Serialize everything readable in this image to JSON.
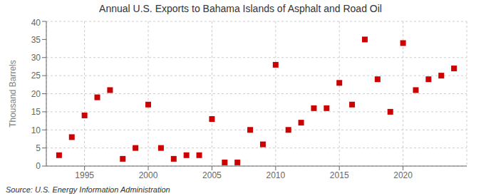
{
  "chart_data": {
    "type": "scatter",
    "title": "Annual U.S. Exports to Bahama Islands of Asphalt and Road Oil",
    "ylabel": "Thousand Barrels",
    "annotations": [
      "Source: U.S. Energy Information Administration"
    ],
    "x": [
      1993,
      1994,
      1995,
      1996,
      1997,
      1998,
      1999,
      2000,
      2001,
      2002,
      2003,
      2004,
      2005,
      2006,
      2007,
      2008,
      2009,
      2010,
      2011,
      2012,
      2013,
      2014,
      2015,
      2016,
      2017,
      2018,
      2019,
      2020,
      2021,
      2022,
      2023,
      2024
    ],
    "values": [
      3,
      8,
      14,
      19,
      21,
      2,
      5,
      17,
      5,
      2,
      3,
      3,
      13,
      1,
      1,
      10,
      6,
      28,
      10,
      12,
      16,
      16,
      23,
      17,
      35,
      24,
      15,
      34,
      21,
      24,
      25,
      27
    ],
    "color": "#cc0000",
    "marker": "square",
    "xlim": [
      1992,
      2025
    ],
    "ylim": [
      0,
      40
    ],
    "yticks": [
      0,
      5,
      10,
      15,
      20,
      25,
      30,
      35,
      40
    ],
    "xticks": [
      1995,
      2000,
      2005,
      2010,
      2015,
      2020
    ],
    "grid": true
  }
}
